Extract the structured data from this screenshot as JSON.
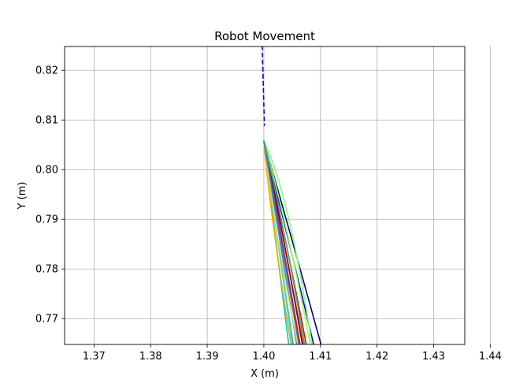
{
  "chart_data": {
    "type": "line",
    "title": "Robot Movement",
    "xlabel": "X (m)",
    "ylabel": "Y (m)",
    "xlim": [
      1.3648,
      1.4355
    ],
    "ylim": [
      0.7648,
      0.8248
    ],
    "xticks": [
      1.37,
      1.38,
      1.39,
      1.4,
      1.41,
      1.42,
      1.43,
      1.44
    ],
    "xtick_labels": [
      "1.37",
      "1.38",
      "1.39",
      "1.40",
      "1.41",
      "1.42",
      "1.43",
      "1.44"
    ],
    "yticks": [
      0.77,
      0.78,
      0.79,
      0.8,
      0.81,
      0.82
    ],
    "ytick_labels": [
      "0.77",
      "0.78",
      "0.79",
      "0.80",
      "0.81",
      "0.82"
    ],
    "grid": true,
    "legend": "none",
    "path": {
      "style": "dashed",
      "color": "#0000ff",
      "x": [
        1.3997,
        1.3998,
        1.3999,
        1.4,
        1.4001
      ],
      "y": [
        0.825,
        0.821,
        0.817,
        0.813,
        0.8088
      ]
    },
    "series": [
      {
        "color": "#00008b",
        "x": [
          1.4,
          1.404,
          1.4101
        ],
        "y": [
          0.8058,
          0.79,
          0.7648
        ]
      },
      {
        "color": "#0000ff",
        "x": [
          1.4,
          1.4035,
          1.4088
        ],
        "y": [
          0.8058,
          0.79,
          0.7648
        ]
      },
      {
        "color": "#1e90ff",
        "x": [
          1.4,
          1.4022,
          1.4058
        ],
        "y": [
          0.8058,
          0.79,
          0.7648
        ]
      },
      {
        "color": "#00bfff",
        "x": [
          1.4,
          1.4018,
          1.4052
        ],
        "y": [
          0.8058,
          0.79,
          0.7648
        ]
      },
      {
        "color": "#00ced1",
        "x": [
          1.4,
          1.4016,
          1.4044
        ],
        "y": [
          0.8058,
          0.79,
          0.7648
        ]
      },
      {
        "color": "#40e0d0",
        "x": [
          1.4,
          1.402,
          1.405
        ],
        "y": [
          0.8058,
          0.79,
          0.7648
        ]
      },
      {
        "color": "#7fff7f",
        "x": [
          1.4,
          1.4045,
          1.4085
        ],
        "y": [
          0.8058,
          0.795,
          0.7648
        ]
      },
      {
        "color": "#adff2f",
        "x": [
          1.4,
          1.404,
          1.4082
        ],
        "y": [
          0.8058,
          0.79,
          0.7648
        ]
      },
      {
        "color": "#ffd700",
        "x": [
          1.4,
          1.4015,
          1.406
        ],
        "y": [
          0.8058,
          0.79,
          0.7648
        ]
      },
      {
        "color": "#ffa500",
        "x": [
          1.4,
          1.401,
          1.4048
        ],
        "y": [
          0.8058,
          0.792,
          0.7648
        ]
      },
      {
        "color": "#ff4500",
        "x": [
          1.4,
          1.4028,
          1.407
        ],
        "y": [
          0.8058,
          0.79,
          0.7648
        ]
      },
      {
        "color": "#ff0000",
        "x": [
          1.4,
          1.4032,
          1.4075
        ],
        "y": [
          0.8058,
          0.79,
          0.7648
        ]
      },
      {
        "color": "#b22222",
        "x": [
          1.4,
          1.4026,
          1.4064
        ],
        "y": [
          0.8058,
          0.79,
          0.7648
        ]
      },
      {
        "color": "#8b0000",
        "x": [
          1.4,
          1.403,
          1.4068
        ],
        "y": [
          0.8058,
          0.79,
          0.7648
        ]
      },
      {
        "color": "#4169e1",
        "x": [
          1.4,
          1.4024,
          1.4062
        ],
        "y": [
          0.8058,
          0.79,
          0.7648
        ]
      },
      {
        "color": "#20b2aa",
        "x": [
          1.4,
          1.4034,
          1.4072
        ],
        "y": [
          0.8058,
          0.79,
          0.7648
        ]
      }
    ]
  }
}
